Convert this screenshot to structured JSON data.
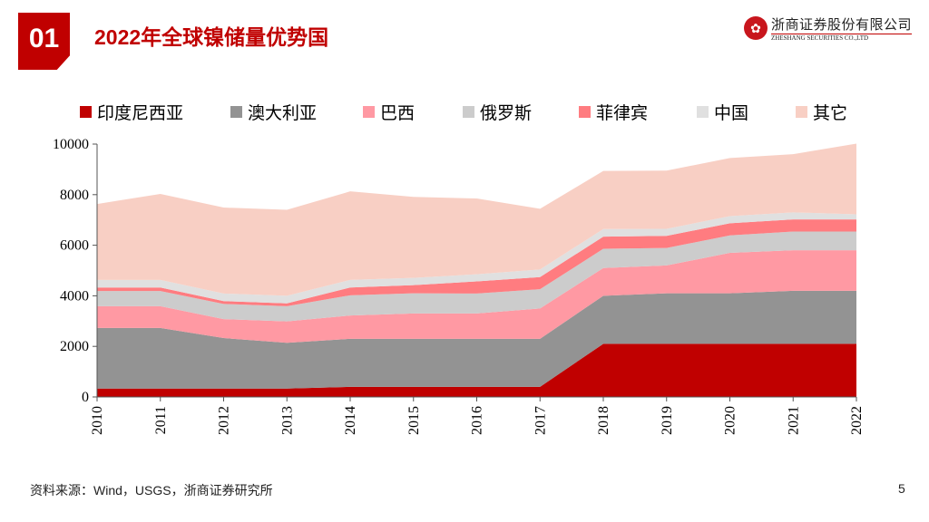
{
  "header": {
    "section_number": "01",
    "title": "2022年全球镍储量优势国",
    "logo_cn": "浙商证券股份有限公司",
    "logo_en": "ZHESHANG SECURITIES CO.,LTD"
  },
  "footer": {
    "source": "资料来源：Wind，USGS，浙商证券研究所",
    "page_number": "5"
  },
  "chart_data": {
    "type": "area",
    "stacked": true,
    "title": "",
    "xlabel": "",
    "ylabel": "",
    "ylim": [
      0,
      10000
    ],
    "yticks": [
      0,
      2000,
      4000,
      6000,
      8000,
      10000
    ],
    "categories": [
      "2010",
      "2011",
      "2012",
      "2013",
      "2014",
      "2015",
      "2016",
      "2017",
      "2018",
      "2019",
      "2020",
      "2021",
      "2022"
    ],
    "legend_position": "top",
    "grid": false,
    "series": [
      {
        "name": "印度尼西亚",
        "color": "#C00000",
        "values": [
          330,
          330,
          330,
          330,
          400,
          400,
          400,
          400,
          2100,
          2100,
          2100,
          2100,
          2100
        ]
      },
      {
        "name": "澳大利亚",
        "color": "#939393",
        "values": [
          2400,
          2400,
          2000,
          1810,
          1900,
          1900,
          1900,
          1900,
          1900,
          2000,
          2000,
          2100,
          2100
        ]
      },
      {
        "name": "巴西",
        "color": "#FF99A3",
        "values": [
          860,
          860,
          750,
          850,
          920,
          1000,
          1000,
          1200,
          1100,
          1100,
          1600,
          1600,
          1600
        ]
      },
      {
        "name": "俄罗斯",
        "color": "#CCCCCC",
        "values": [
          600,
          600,
          600,
          600,
          800,
          800,
          790,
          760,
          760,
          690,
          690,
          740,
          740
        ]
      },
      {
        "name": "菲律宾",
        "color": "#FF7C80",
        "values": [
          140,
          140,
          110,
          110,
          310,
          320,
          480,
          480,
          480,
          480,
          480,
          480,
          480
        ]
      },
      {
        "name": "中国",
        "color": "#E0E0E0",
        "values": [
          300,
          300,
          300,
          300,
          300,
          290,
          280,
          300,
          300,
          280,
          280,
          280,
          200
        ]
      },
      {
        "name": "其它",
        "color": "#F8CFC4",
        "values": [
          3000,
          3400,
          3400,
          3400,
          3500,
          3200,
          3000,
          2400,
          2300,
          2300,
          2300,
          2300,
          2800
        ]
      }
    ]
  }
}
